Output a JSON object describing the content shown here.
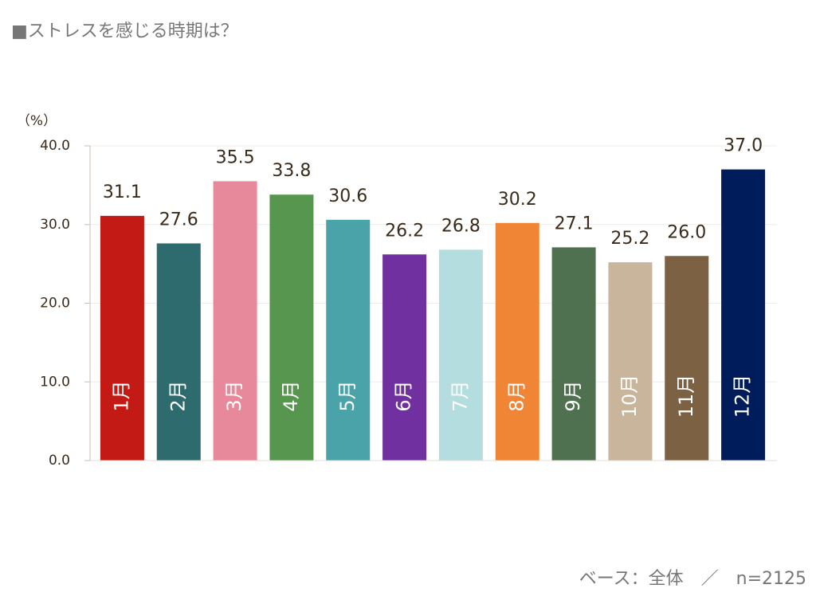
{
  "chart_data": {
    "type": "bar",
    "title": "■ストレスを感じる時期は？",
    "y_unit": "（%）",
    "note": "ベース：全体　／　n=2125",
    "categories": [
      "1月",
      "2月",
      "3月",
      "4月",
      "5月",
      "6月",
      "7月",
      "8月",
      "9月",
      "10月",
      "11月",
      "12月"
    ],
    "values": [
      31.1,
      27.6,
      35.5,
      33.8,
      30.6,
      26.2,
      26.8,
      30.2,
      27.1,
      25.2,
      26.0,
      37.0
    ],
    "value_labels": [
      "31.1",
      "27.6",
      "35.5",
      "33.8",
      "30.6",
      "26.2",
      "26.8",
      "30.2",
      "27.1",
      "25.2",
      "26.0",
      "37.0"
    ],
    "colors": [
      "#c41a16",
      "#2e6b6e",
      "#e8899b",
      "#56964f",
      "#4aa3a9",
      "#7030a0",
      "#b4dde0",
      "#ef8535",
      "#4f7150",
      "#c9b59c",
      "#7c6143",
      "#001c5b"
    ],
    "ylim": [
      0,
      40
    ],
    "yticks": [
      {
        "value": 0,
        "label": "0.0"
      },
      {
        "value": 10,
        "label": "10.0"
      },
      {
        "value": 20,
        "label": "20.0"
      },
      {
        "value": 30,
        "label": "30.0"
      },
      {
        "value": 40,
        "label": "40.0"
      }
    ],
    "grid": true
  }
}
